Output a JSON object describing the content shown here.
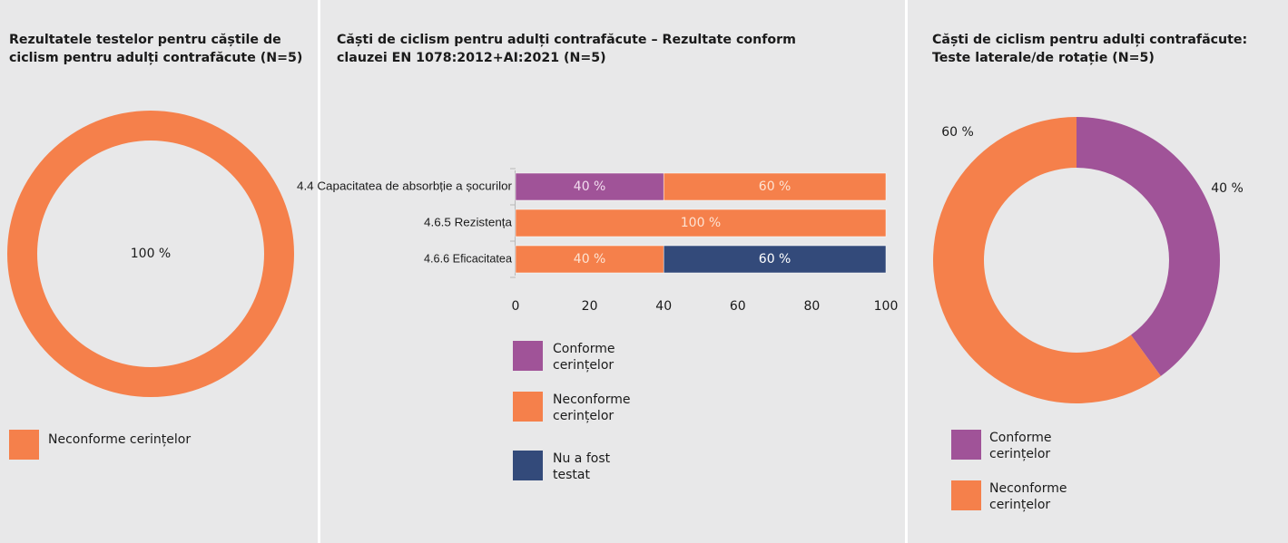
{
  "colors": {
    "conforme": "#a05398",
    "neconforme": "#f5804b",
    "netestat": "#334a7a"
  },
  "legend_labels": {
    "conforme": "Conforme cerințelor",
    "neconforme": "Neconforme cerințelor",
    "netestat": "Nu a fost testat"
  },
  "chart_data": [
    {
      "type": "pie",
      "title": "Rezultatele testelor pentru căștile de ciclism pentru adulți contrafăcute (N=5)",
      "slices": [
        {
          "key": "neconforme",
          "label": "Neconforme cerințelor",
          "value": 100,
          "data_label": "100 %"
        }
      ],
      "legend": [
        "Neconforme cerințelor"
      ],
      "legend_position": "bottom"
    },
    {
      "type": "bar",
      "orientation": "horizontal",
      "stacked": true,
      "title": "Căști de ciclism pentru adulți contrafăcute – Rezultate conform clauzei EN 1078:2012+AI:2021 (N=5)",
      "categories": [
        "4.4 Capacitatea de absorbție a șocurilor",
        "4.6.5 Rezistența",
        "4.6.6 Eficacitatea"
      ],
      "series": [
        {
          "key": "conforme",
          "name": "Conforme cerințelor",
          "values": [
            40,
            0,
            0
          ],
          "labels": [
            "40 %",
            "",
            ""
          ]
        },
        {
          "key": "neconforme",
          "name": "Neconforme cerințelor",
          "values": [
            60,
            100,
            40
          ],
          "labels": [
            "60 %",
            "100 %",
            "40 %"
          ]
        },
        {
          "key": "netestat",
          "name": "Nu a fost testat",
          "values": [
            0,
            0,
            60
          ],
          "labels": [
            "",
            "",
            "60 %"
          ]
        }
      ],
      "xlim": [
        0,
        100
      ],
      "xticks": [
        "0",
        "20",
        "40",
        "60",
        "80",
        "100"
      ],
      "grid": false,
      "legend_position": "bottom-left"
    },
    {
      "type": "pie",
      "title": "Căști de ciclism pentru adulți contrafăcute: Teste laterale/de rotație (N=5)",
      "slices": [
        {
          "key": "conforme",
          "label": "Conforme cerințelor",
          "value": 40,
          "data_label": "40 %"
        },
        {
          "key": "neconforme",
          "label": "Neconforme cerințelor",
          "value": 60,
          "data_label": "60 %"
        }
      ],
      "legend": [
        "Conforme cerințelor",
        "Neconforme cerințelor"
      ],
      "legend_position": "bottom"
    }
  ]
}
